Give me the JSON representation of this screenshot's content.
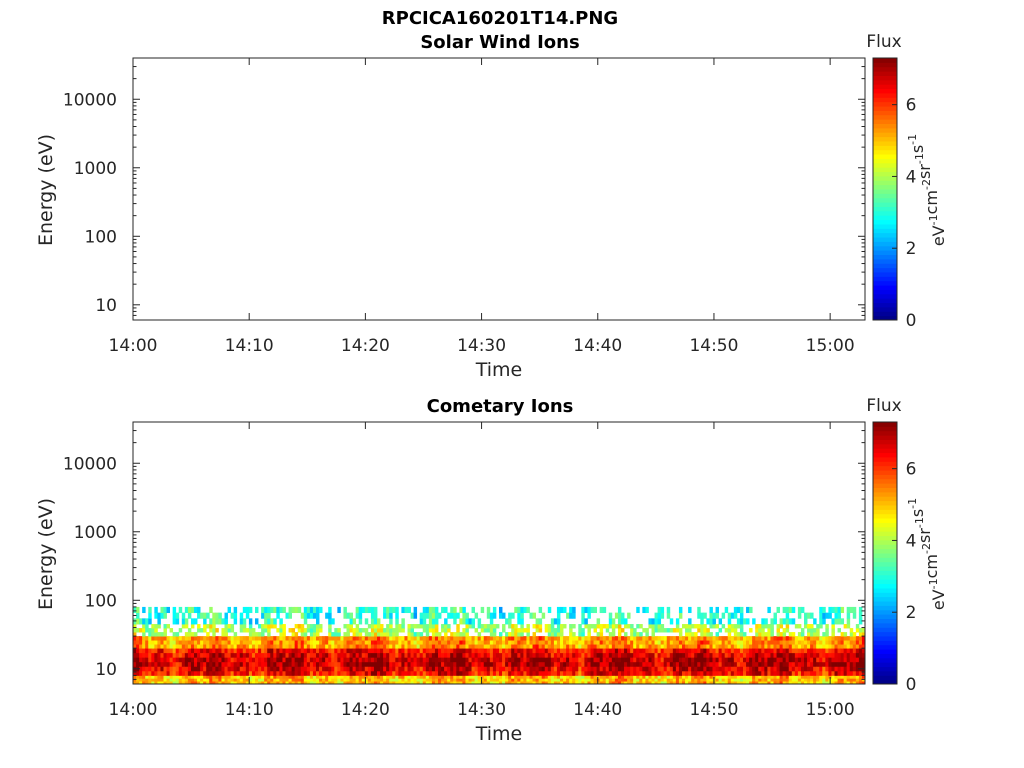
{
  "figure_title": "RPCICA160201T14.PNG",
  "colors": {
    "colormap": "jet",
    "colormap_stops": [
      "#00007f",
      "#0000ff",
      "#007fff",
      "#00ffff",
      "#7fff7f",
      "#ffff00",
      "#ff7f00",
      "#ff0000",
      "#7f0000"
    ]
  },
  "chart_data": [
    {
      "type": "heatmap",
      "title": "Solar Wind Ions",
      "xlabel": "Time",
      "ylabel": "Energy (eV)",
      "x_ticks": [
        "14:00",
        "14:10",
        "14:20",
        "14:30",
        "14:40",
        "14:50",
        "15:00"
      ],
      "xlim": [
        "14:00",
        "15:03"
      ],
      "y_scale": "log",
      "y_ticks": [
        "10",
        "100",
        "1000",
        "10000"
      ],
      "ylim": [
        6,
        40000
      ],
      "colorbar": {
        "title": "Flux",
        "label": "eV-1cm-2sr-1s-1",
        "label_parts": [
          [
            "eV",
            "-1"
          ],
          [
            "cm",
            "-2"
          ],
          [
            "sr",
            "-1"
          ],
          [
            "s",
            "-1"
          ]
        ],
        "ticks": [
          "0",
          "2",
          "4",
          "6"
        ],
        "range": [
          0,
          7.3
        ]
      },
      "data": []
    },
    {
      "type": "heatmap",
      "title": "Cometary Ions",
      "xlabel": "Time",
      "ylabel": "Energy (eV)",
      "x_ticks": [
        "14:00",
        "14:10",
        "14:20",
        "14:30",
        "14:40",
        "14:50",
        "15:00"
      ],
      "xlim": [
        "14:00",
        "15:03"
      ],
      "y_scale": "log",
      "y_ticks": [
        "10",
        "100",
        "1000",
        "10000"
      ],
      "ylim": [
        6,
        40000
      ],
      "colorbar": {
        "title": "Flux",
        "label": "eV-1cm-2sr-1s-1",
        "label_parts": [
          [
            "eV",
            "-1"
          ],
          [
            "cm",
            "-2"
          ],
          [
            "sr",
            "-1"
          ],
          [
            "s",
            "-1"
          ]
        ],
        "ticks": [
          "0",
          "2",
          "4",
          "6"
        ],
        "range": [
          0,
          7.3
        ]
      },
      "data": [
        {
          "energy_range_eV": [
            6,
            8
          ],
          "flux_level": 5.0
        },
        {
          "energy_range_eV": [
            8,
            20
          ],
          "flux_level": 6.5
        },
        {
          "energy_range_eV": [
            20,
            30
          ],
          "flux_level": 5.3
        },
        {
          "energy_range_eV": [
            30,
            45
          ],
          "flux_level": 4.0
        },
        {
          "energy_range_eV": [
            45,
            80
          ],
          "flux_level": 3.0
        }
      ]
    }
  ]
}
